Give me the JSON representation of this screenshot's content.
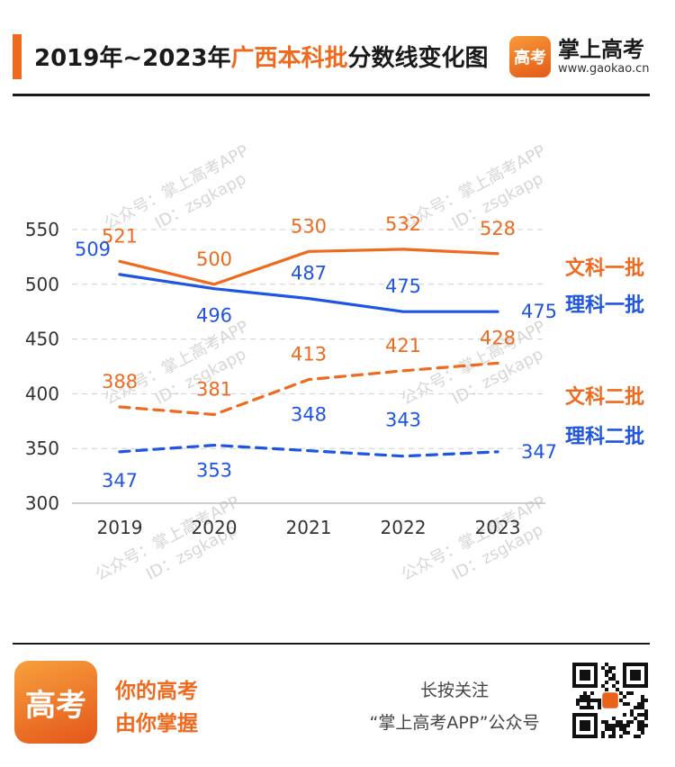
{
  "header": {
    "title_prefix": "2019年~2023年",
    "title_highlight": "广西本科批",
    "title_suffix": "分数线变化图",
    "brand_logo_text": "高考",
    "brand_name": "掌上高考",
    "brand_url": "www.gaokao.cn"
  },
  "watermark": {
    "line1": "公众号：掌上高考APP",
    "line2": "ID：zsgkapp"
  },
  "chart_data": {
    "type": "line",
    "categories": [
      "2019",
      "2020",
      "2021",
      "2022",
      "2023"
    ],
    "ylim": [
      300,
      550
    ],
    "yticks": [
      300,
      350,
      400,
      450,
      500,
      550
    ],
    "grid": true,
    "legend_position": "right",
    "series": [
      {
        "name": "文科一批",
        "values": [
          521,
          500,
          530,
          532,
          528
        ],
        "color": "#ee6a1f",
        "dash": "solid"
      },
      {
        "name": "理科一批",
        "values": [
          509,
          496,
          487,
          475,
          475
        ],
        "color": "#1f55e0",
        "dash": "solid"
      },
      {
        "name": "文科二批",
        "values": [
          388,
          381,
          413,
          421,
          428
        ],
        "color": "#ee6a1f",
        "dash": "dashed"
      },
      {
        "name": "理科二批",
        "values": [
          347,
          353,
          348,
          343,
          347
        ],
        "color": "#1f55e0",
        "dash": "dashed"
      }
    ]
  },
  "footer": {
    "logo_text": "高考",
    "slogan_line1": "你的高考",
    "slogan_line2": "由你掌握",
    "follow_line1": "长按关注",
    "follow_line2": "“掌上高考APP”公众号"
  }
}
